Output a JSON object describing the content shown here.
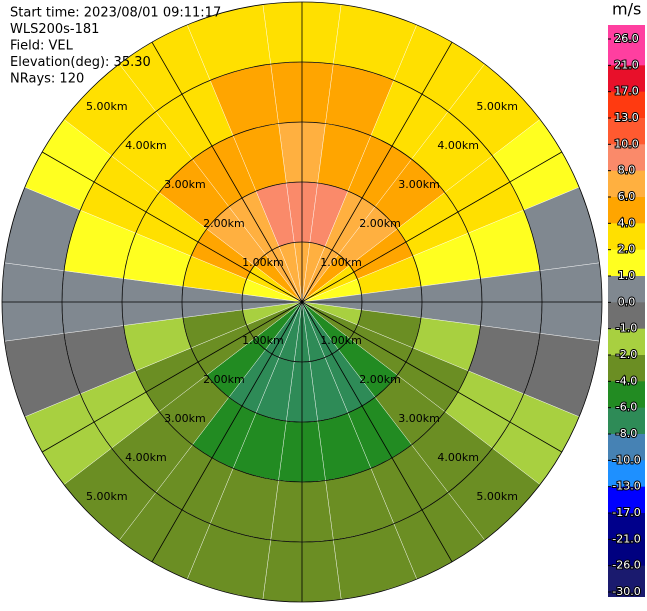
{
  "chart_data": {
    "type": "ppi",
    "info": [
      "Start time: 2023/08/01 09:11:17",
      "WLS200s-181",
      "Field: VEL",
      "Elevation(deg): 35.30",
      "NRays: 120"
    ],
    "colorbar_title": "m/s",
    "azimuths": [
      0,
      15,
      30,
      45,
      60,
      75,
      90,
      105,
      120,
      135,
      150,
      165,
      180,
      195,
      210,
      225,
      240,
      255,
      270,
      285,
      300,
      315,
      330,
      345
    ],
    "range_edges": [
      0,
      1,
      2,
      3,
      4,
      5
    ],
    "field": [
      [
        7,
        6.8,
        6.1,
        5,
        3.5,
        1.8,
        0,
        -1.8,
        -3.5,
        -5,
        -6.1,
        -6.8,
        -7,
        -6.8,
        -6.1,
        -5,
        -3.5,
        -1.8,
        0,
        1.8,
        3.5,
        5,
        6.1,
        6.8
      ],
      [
        9,
        8.7,
        7.8,
        6.4,
        4.5,
        2.3,
        0,
        -2.1,
        -4,
        -5.7,
        -6.9,
        -7.7,
        -8,
        -7.7,
        -6.9,
        -5.7,
        -4,
        -2.1,
        0,
        2.3,
        4.5,
        6.4,
        7.8,
        8.7
      ],
      [
        6,
        5.8,
        5.2,
        4.2,
        3,
        1.6,
        0,
        -1.4,
        -2.8,
        -3.9,
        -4.8,
        -5.3,
        -5.5,
        -5.3,
        -4.8,
        -3.9,
        -2.8,
        -1.4,
        0,
        1.6,
        3,
        4.2,
        5.2,
        5.8
      ],
      [
        4.5,
        4.3,
        3.9,
        3.2,
        2.3,
        1.2,
        0,
        -1,
        -2,
        -2.8,
        -3.5,
        -3.9,
        -4,
        -3.9,
        -3.5,
        -2.8,
        -2,
        -1,
        0,
        1.2,
        2.3,
        3.2,
        3.9,
        4.3
      ],
      [
        3.5,
        3.4,
        3,
        2.5,
        1.8,
        0.9,
        0,
        -0.8,
        -1.5,
        -2.1,
        -2.6,
        -2.9,
        -3,
        -2.9,
        -2.6,
        -2.1,
        -1.5,
        -0.8,
        0,
        0.9,
        1.8,
        2.5,
        3,
        3.4
      ]
    ],
    "rings": [
      {
        "value": 1,
        "label": "1.00km"
      },
      {
        "value": 2,
        "label": "2.00km"
      },
      {
        "value": 3,
        "label": "3.00km"
      },
      {
        "value": 4,
        "label": "4.00km"
      },
      {
        "value": 5,
        "label": "5.00km"
      }
    ],
    "rlim": [
      0,
      5
    ],
    "spokes": [
      0,
      30,
      60,
      90,
      120,
      150,
      180,
      210,
      240,
      270,
      300,
      330
    ],
    "cticks": [
      {
        "value": 26,
        "label": "26.0"
      },
      {
        "value": 21,
        "label": "21.0"
      },
      {
        "value": 17,
        "label": "17.0"
      },
      {
        "value": 13,
        "label": "13.0"
      },
      {
        "value": 10,
        "label": "10.0"
      },
      {
        "value": 8,
        "label": "8.0"
      },
      {
        "value": 6,
        "label": "6.0"
      },
      {
        "value": 4,
        "label": "4.0"
      },
      {
        "value": 2,
        "label": "2.0"
      },
      {
        "value": 1,
        "label": "1.0"
      },
      {
        "value": 0,
        "label": "0.0"
      },
      {
        "value": -1,
        "label": "-1.0"
      },
      {
        "value": -2,
        "label": "-2.0"
      },
      {
        "value": -4,
        "label": "-4.0"
      },
      {
        "value": -6,
        "label": "-6.0"
      },
      {
        "value": -8,
        "label": "-8.0"
      },
      {
        "value": -10,
        "label": "-10.0"
      },
      {
        "value": -13,
        "label": "-13.0"
      },
      {
        "value": -17,
        "label": "-17.0"
      },
      {
        "value": -21,
        "label": "-21.0"
      },
      {
        "value": -26,
        "label": "-26.0"
      },
      {
        "value": -30,
        "label": "-30.0"
      }
    ],
    "colors": [
      "#ff3fa0",
      "#e8102a",
      "#ff3a10",
      "#ff5a30",
      "#fa8a6a",
      "#ffb040",
      "#ffa500",
      "#ffe000",
      "#ffff20",
      "#808890",
      "#707070",
      "#a8d040",
      "#6b8e23",
      "#228b22",
      "#2e8b57",
      "#4682b4",
      "#1e90ff",
      "#0000ff",
      "#00008b",
      "#000080",
      "#1a1a6e"
    ]
  }
}
